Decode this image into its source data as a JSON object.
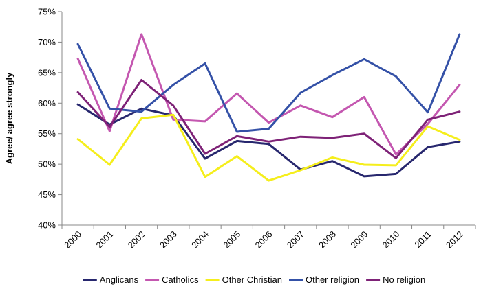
{
  "chart_data": {
    "type": "line",
    "title": "",
    "xlabel": "",
    "ylabel": "Agree/ agree strongly",
    "ylim": [
      40,
      75
    ],
    "y_ticks": [
      "40%",
      "45%",
      "50%",
      "55%",
      "60%",
      "65%",
      "70%",
      "75%"
    ],
    "y_tick_values": [
      40,
      45,
      50,
      55,
      60,
      65,
      70,
      75
    ],
    "grid": false,
    "legend_position": "bottom",
    "categories": [
      "2000",
      "2001",
      "2002",
      "2003",
      "2004",
      "2005",
      "2006",
      "2007",
      "2008",
      "2009",
      "2010",
      "2011",
      "2012"
    ],
    "series": [
      {
        "name": "Anglicans",
        "color": "#27276e",
        "values": [
          59.8,
          56.5,
          59.1,
          58.0,
          50.9,
          53.8,
          53.3,
          49.1,
          50.5,
          48.0,
          48.4,
          52.8,
          53.7
        ]
      },
      {
        "name": "Catholics",
        "color": "#c457b0",
        "values": [
          67.3,
          55.4,
          71.3,
          57.3,
          57.0,
          61.6,
          56.8,
          59.6,
          57.7,
          61.0,
          51.6,
          56.6,
          63.0
        ]
      },
      {
        "name": "Other Christian",
        "color": "#f5ee1c",
        "values": [
          54.1,
          49.9,
          57.5,
          58.1,
          47.9,
          51.3,
          47.3,
          49.0,
          51.1,
          49.9,
          49.8,
          56.2,
          54.0
        ]
      },
      {
        "name": "Other religion",
        "color": "#3451a7",
        "values": [
          69.7,
          59.1,
          58.6,
          63.0,
          66.5,
          55.3,
          55.8,
          61.7,
          64.6,
          67.2,
          64.4,
          58.5,
          71.3
        ]
      },
      {
        "name": "No religion",
        "color": "#7e2277",
        "values": [
          61.8,
          56.1,
          63.8,
          59.6,
          51.7,
          54.6,
          53.7,
          54.5,
          54.3,
          55.0,
          51.0,
          57.3,
          58.6
        ]
      }
    ]
  }
}
